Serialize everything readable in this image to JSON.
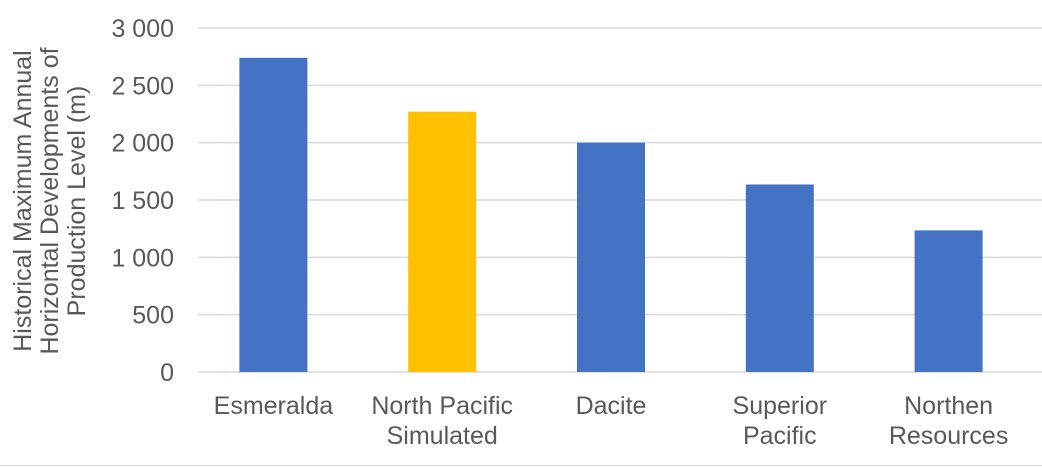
{
  "chart_data": {
    "type": "bar",
    "categories": [
      [
        "Esmeralda"
      ],
      [
        "North Pacific",
        "Simulated"
      ],
      [
        "Dacite"
      ],
      [
        "Superior",
        "Pacific"
      ],
      [
        "Northen",
        "Resources"
      ]
    ],
    "values": [
      2740,
      2270,
      2000,
      1635,
      1235
    ],
    "bar_colors": [
      "#4472c4",
      "#ffc000",
      "#4472c4",
      "#4472c4",
      "#4472c4"
    ],
    "ylabel": [
      "Historical Maximum Annual",
      "Horizontal Developments of",
      "Production Level (m)"
    ],
    "ylim": [
      0,
      3000
    ],
    "yticks": [
      0,
      500,
      1000,
      1500,
      2000,
      2500,
      3000
    ],
    "ytick_labels": [
      "0",
      "500",
      "1 000",
      "1 500",
      "2 000",
      "2 500",
      "3 000"
    ],
    "grid": true,
    "gridline_color": "#d9d9d9"
  }
}
